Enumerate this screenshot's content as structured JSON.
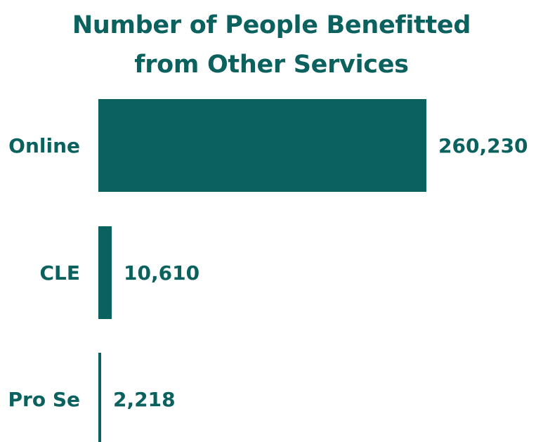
{
  "colors": {
    "bar": "#0a615d",
    "text": "#0a615d",
    "label": "#0a615d"
  },
  "chart_data": {
    "type": "bar",
    "orientation": "horizontal",
    "title_lines": [
      "Number of People Benefitted",
      "from Other Services"
    ],
    "categories": [
      "Online",
      "CLE",
      "Pro Se"
    ],
    "values": [
      260230,
      10610,
      2218
    ],
    "value_labels": [
      "260,230",
      "10,610",
      "2,218"
    ],
    "xlim": [
      0,
      260230
    ],
    "grid": false,
    "legend": "none"
  }
}
